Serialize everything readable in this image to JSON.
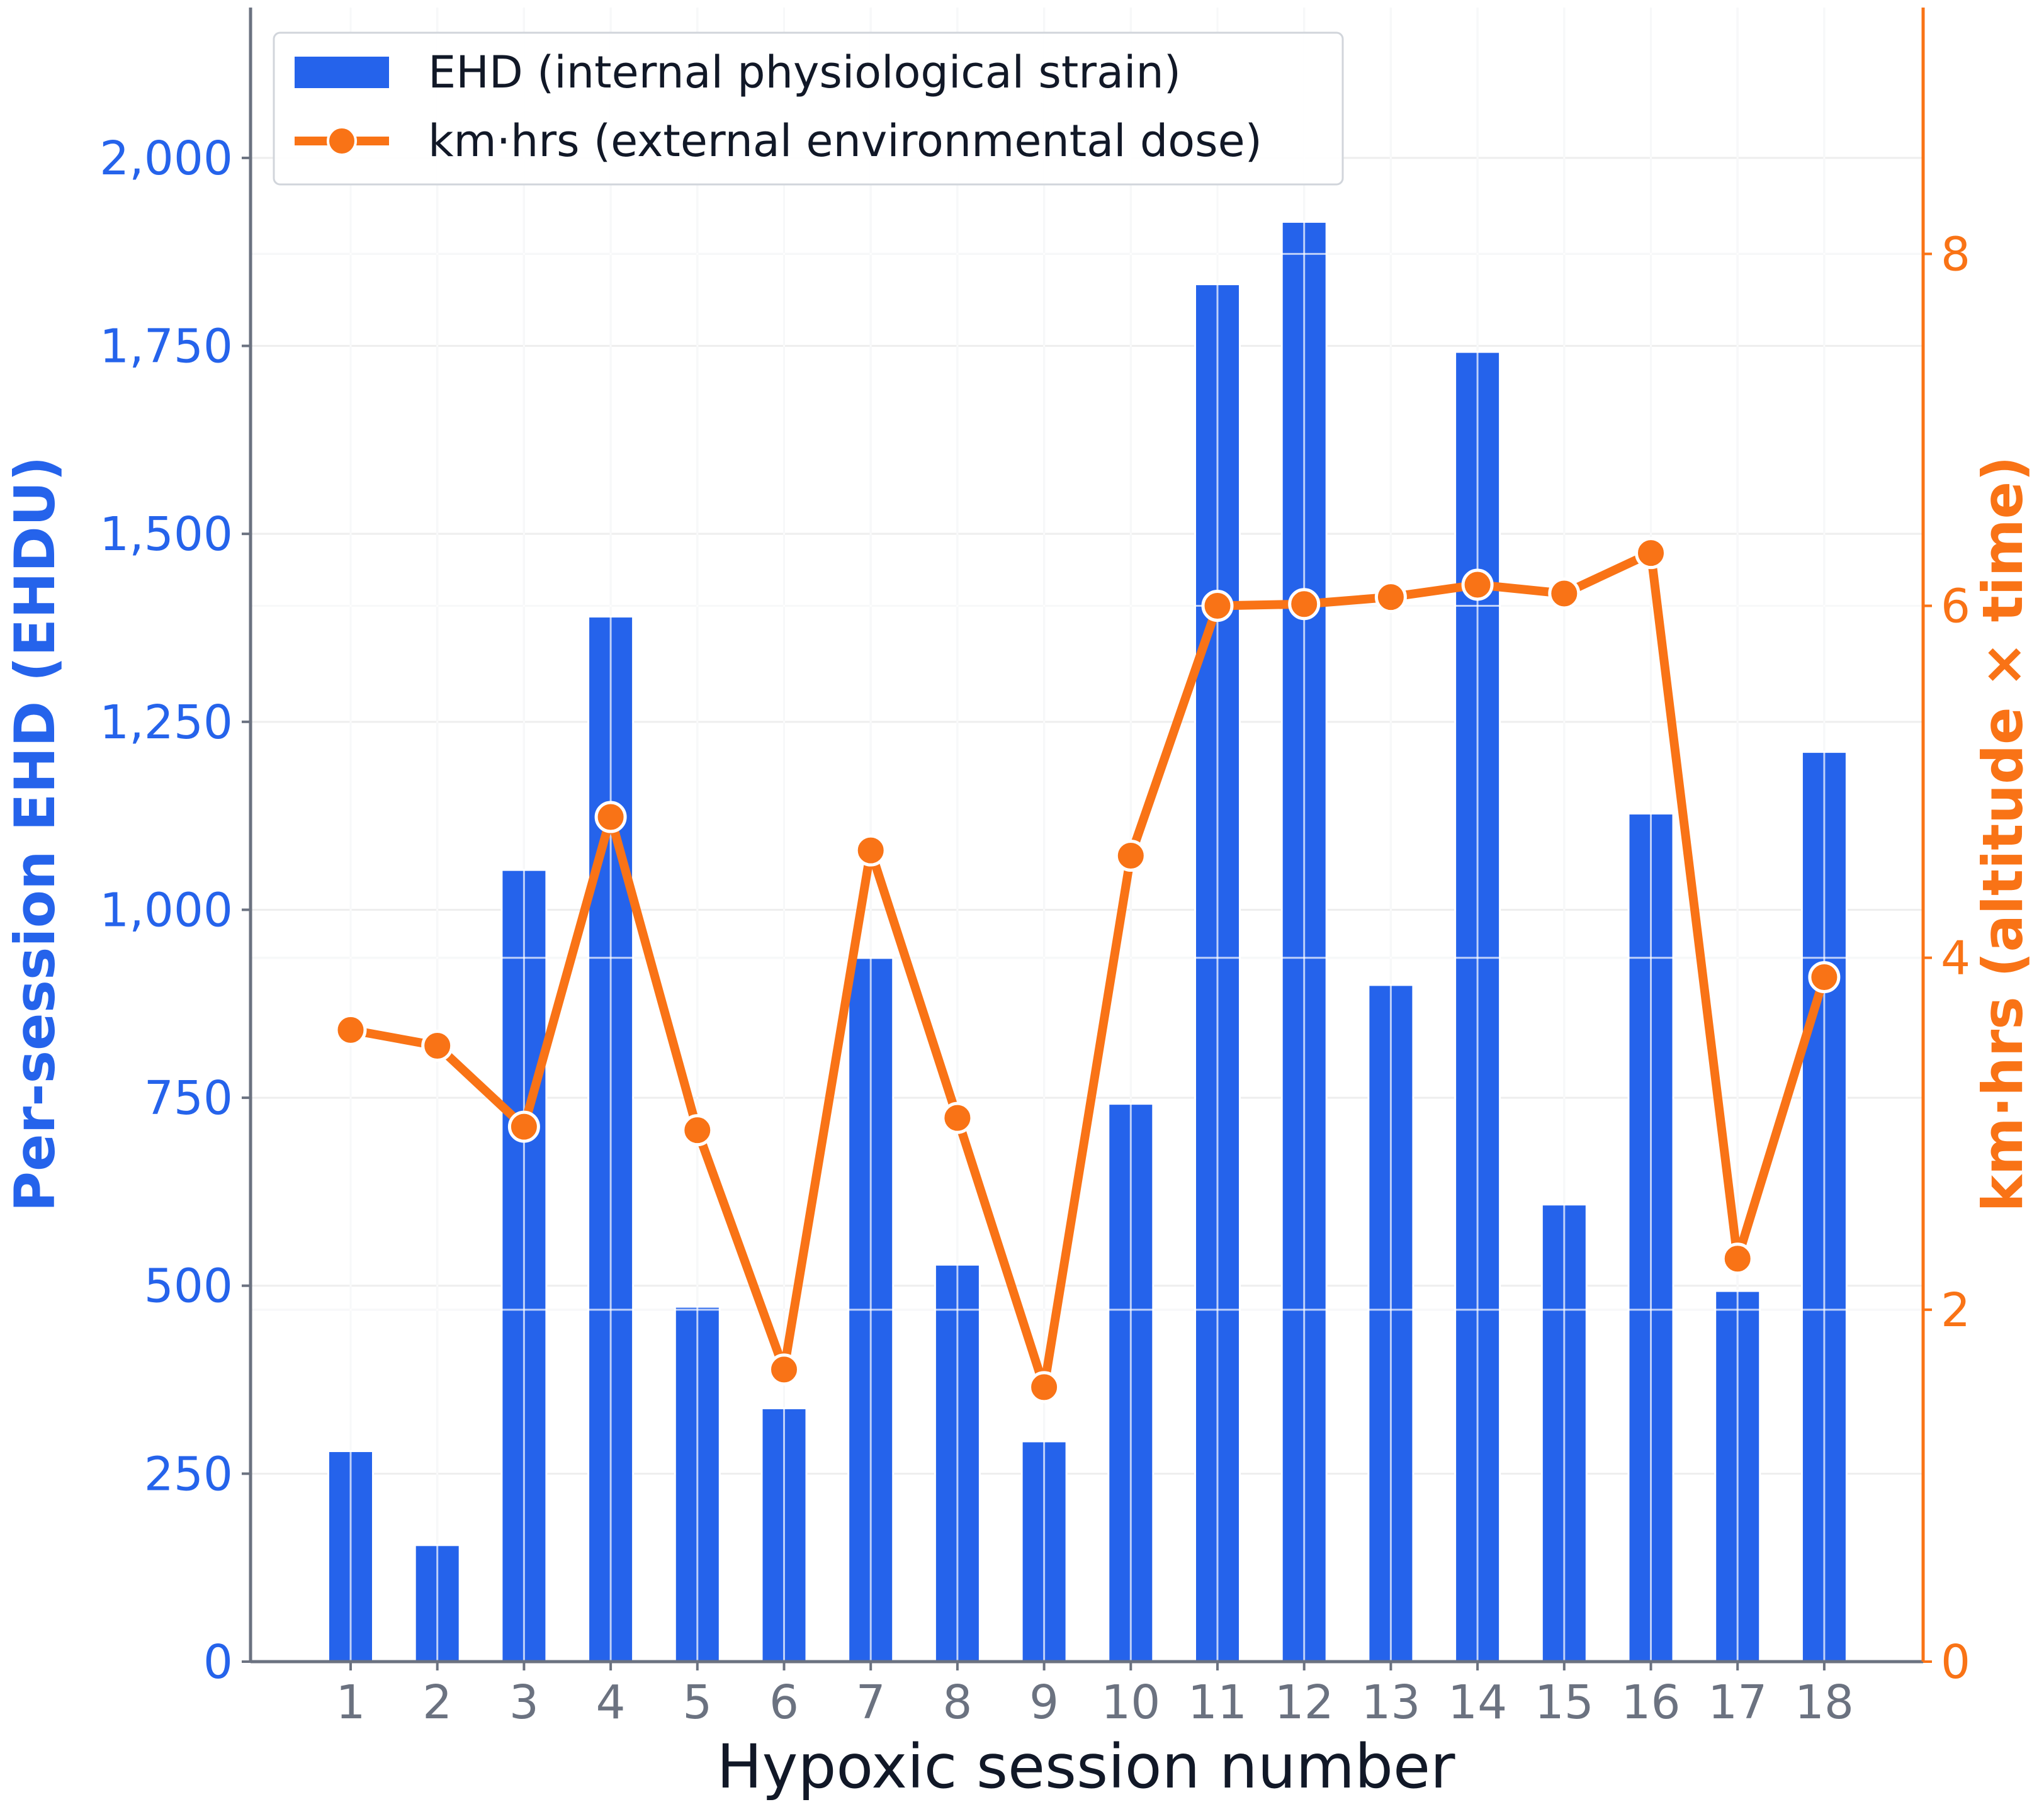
{
  "chart_data": {
    "type": "bar",
    "xlabel": "Hypoxic session number",
    "ylabel_left": "Per-session EHD (EHDU)",
    "ylabel_right": "km·hrs (altitude × time)",
    "categories": [
      "1",
      "2",
      "3",
      "4",
      "5",
      "6",
      "7",
      "8",
      "9",
      "10",
      "11",
      "12",
      "13",
      "14",
      "15",
      "16",
      "17",
      "18"
    ],
    "series": [
      {
        "name": "EHD (internal physiological strain)",
        "type": "bar",
        "axis": "left",
        "color": "#2563eb",
        "values": [
          280,
          155,
          1053,
          1390,
          472,
          337,
          936,
          528,
          293,
          742,
          1832,
          1915,
          900,
          1742,
          608,
          1128,
          493,
          1210
        ]
      },
      {
        "name": "km·hrs (external environmental dose)",
        "type": "line",
        "axis": "right",
        "color": "#f97316",
        "values": [
          3.59,
          3.5,
          3.04,
          4.8,
          3.02,
          1.66,
          4.61,
          3.09,
          1.56,
          4.58,
          6.0,
          6.01,
          6.05,
          6.12,
          6.07,
          6.3,
          2.29,
          3.89
        ]
      }
    ],
    "ylim_left": [
      0,
      2200
    ],
    "ylim_right": [
      0,
      9.4
    ],
    "yticks_left": [
      {
        "value": 0,
        "label": "0"
      },
      {
        "value": 250,
        "label": "250"
      },
      {
        "value": 500,
        "label": "500"
      },
      {
        "value": 750,
        "label": "750"
      },
      {
        "value": 1000,
        "label": "1,000"
      },
      {
        "value": 1250,
        "label": "1,250"
      },
      {
        "value": 1500,
        "label": "1,500"
      },
      {
        "value": 1750,
        "label": "1,750"
      },
      {
        "value": 2000,
        "label": "2,000"
      }
    ],
    "yticks_right": [
      {
        "value": 0,
        "label": "0"
      },
      {
        "value": 2,
        "label": "2"
      },
      {
        "value": 4,
        "label": "4"
      },
      {
        "value": 6,
        "label": "6"
      },
      {
        "value": 8,
        "label": "8"
      }
    ],
    "grid": true,
    "legend_position": "top-left"
  }
}
